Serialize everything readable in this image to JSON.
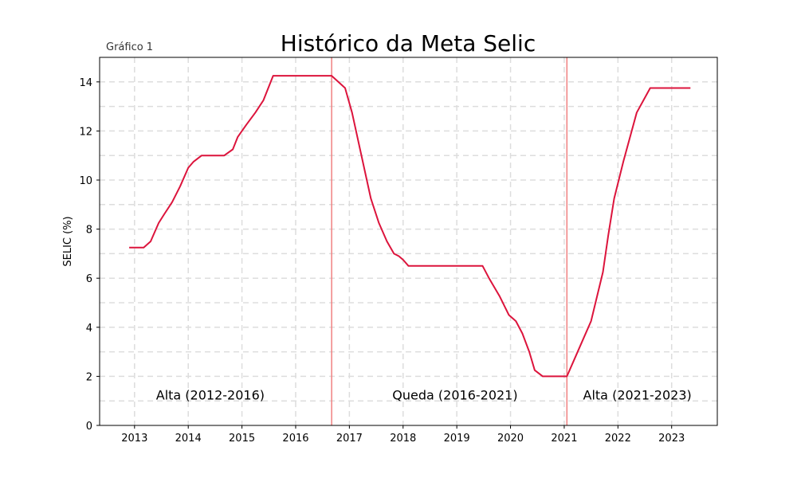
{
  "chart_data": {
    "type": "line",
    "label": "Gráfico 1",
    "title": "Histórico da Meta Selic",
    "xlabel": "",
    "ylabel": "SELIC (%)",
    "xlim": [
      2012.35,
      2023.85
    ],
    "ylim": [
      0,
      15
    ],
    "grid": true,
    "x_ticks": [
      2013,
      2014,
      2015,
      2016,
      2017,
      2018,
      2019,
      2020,
      2021,
      2022,
      2023
    ],
    "y_ticks": [
      0,
      2,
      4,
      6,
      8,
      10,
      12,
      14
    ],
    "colors": {
      "line": "#dc143c",
      "vline": "#f08080",
      "grid": "#dddddd"
    },
    "series": [
      {
        "x": [
          2012.9,
          2013.17,
          2013.3,
          2013.45,
          2013.55,
          2013.7,
          2013.85,
          2014.0,
          2014.1,
          2014.25,
          2014.5,
          2014.67,
          2014.83,
          2014.92,
          2015.08,
          2015.25,
          2015.4,
          2015.58,
          2016.0,
          2016.4,
          2016.67,
          2016.92,
          2017.05,
          2017.2,
          2017.4,
          2017.55,
          2017.7,
          2017.83,
          2017.92,
          2018.0,
          2018.1,
          2018.22,
          2018.5,
          2019.0,
          2019.48,
          2019.6,
          2019.8,
          2019.97,
          2020.1,
          2020.22,
          2020.35,
          2020.45,
          2020.6,
          2020.75,
          2021.05,
          2021.2,
          2021.35,
          2021.5,
          2021.72,
          2021.82,
          2021.93,
          2022.1,
          2022.35,
          2022.6,
          2023.0,
          2023.35
        ],
        "values": [
          7.25,
          7.25,
          7.5,
          8.25,
          8.6,
          9.1,
          9.75,
          10.5,
          10.75,
          11.0,
          11.0,
          11.0,
          11.25,
          11.75,
          12.25,
          12.75,
          13.25,
          14.25,
          14.25,
          14.25,
          14.25,
          13.75,
          12.75,
          11.25,
          9.25,
          8.25,
          7.5,
          7.0,
          6.9,
          6.75,
          6.5,
          6.5,
          6.5,
          6.5,
          6.5,
          6.0,
          5.25,
          4.5,
          4.25,
          3.75,
          3.0,
          2.25,
          2.0,
          2.0,
          2.0,
          2.75,
          3.5,
          4.25,
          6.25,
          7.75,
          9.25,
          10.75,
          12.75,
          13.75,
          13.75,
          13.75
        ]
      }
    ],
    "vlines": [
      2016.67,
      2021.05
    ],
    "annotations": [
      {
        "text": "Alta (2012-2016)",
        "x": 2013.4,
        "y": 1.05
      },
      {
        "text": "Queda (2016-2021)",
        "x": 2017.8,
        "y": 1.05
      },
      {
        "text": "Alta (2021-2023)",
        "x": 2021.35,
        "y": 1.05
      }
    ]
  }
}
